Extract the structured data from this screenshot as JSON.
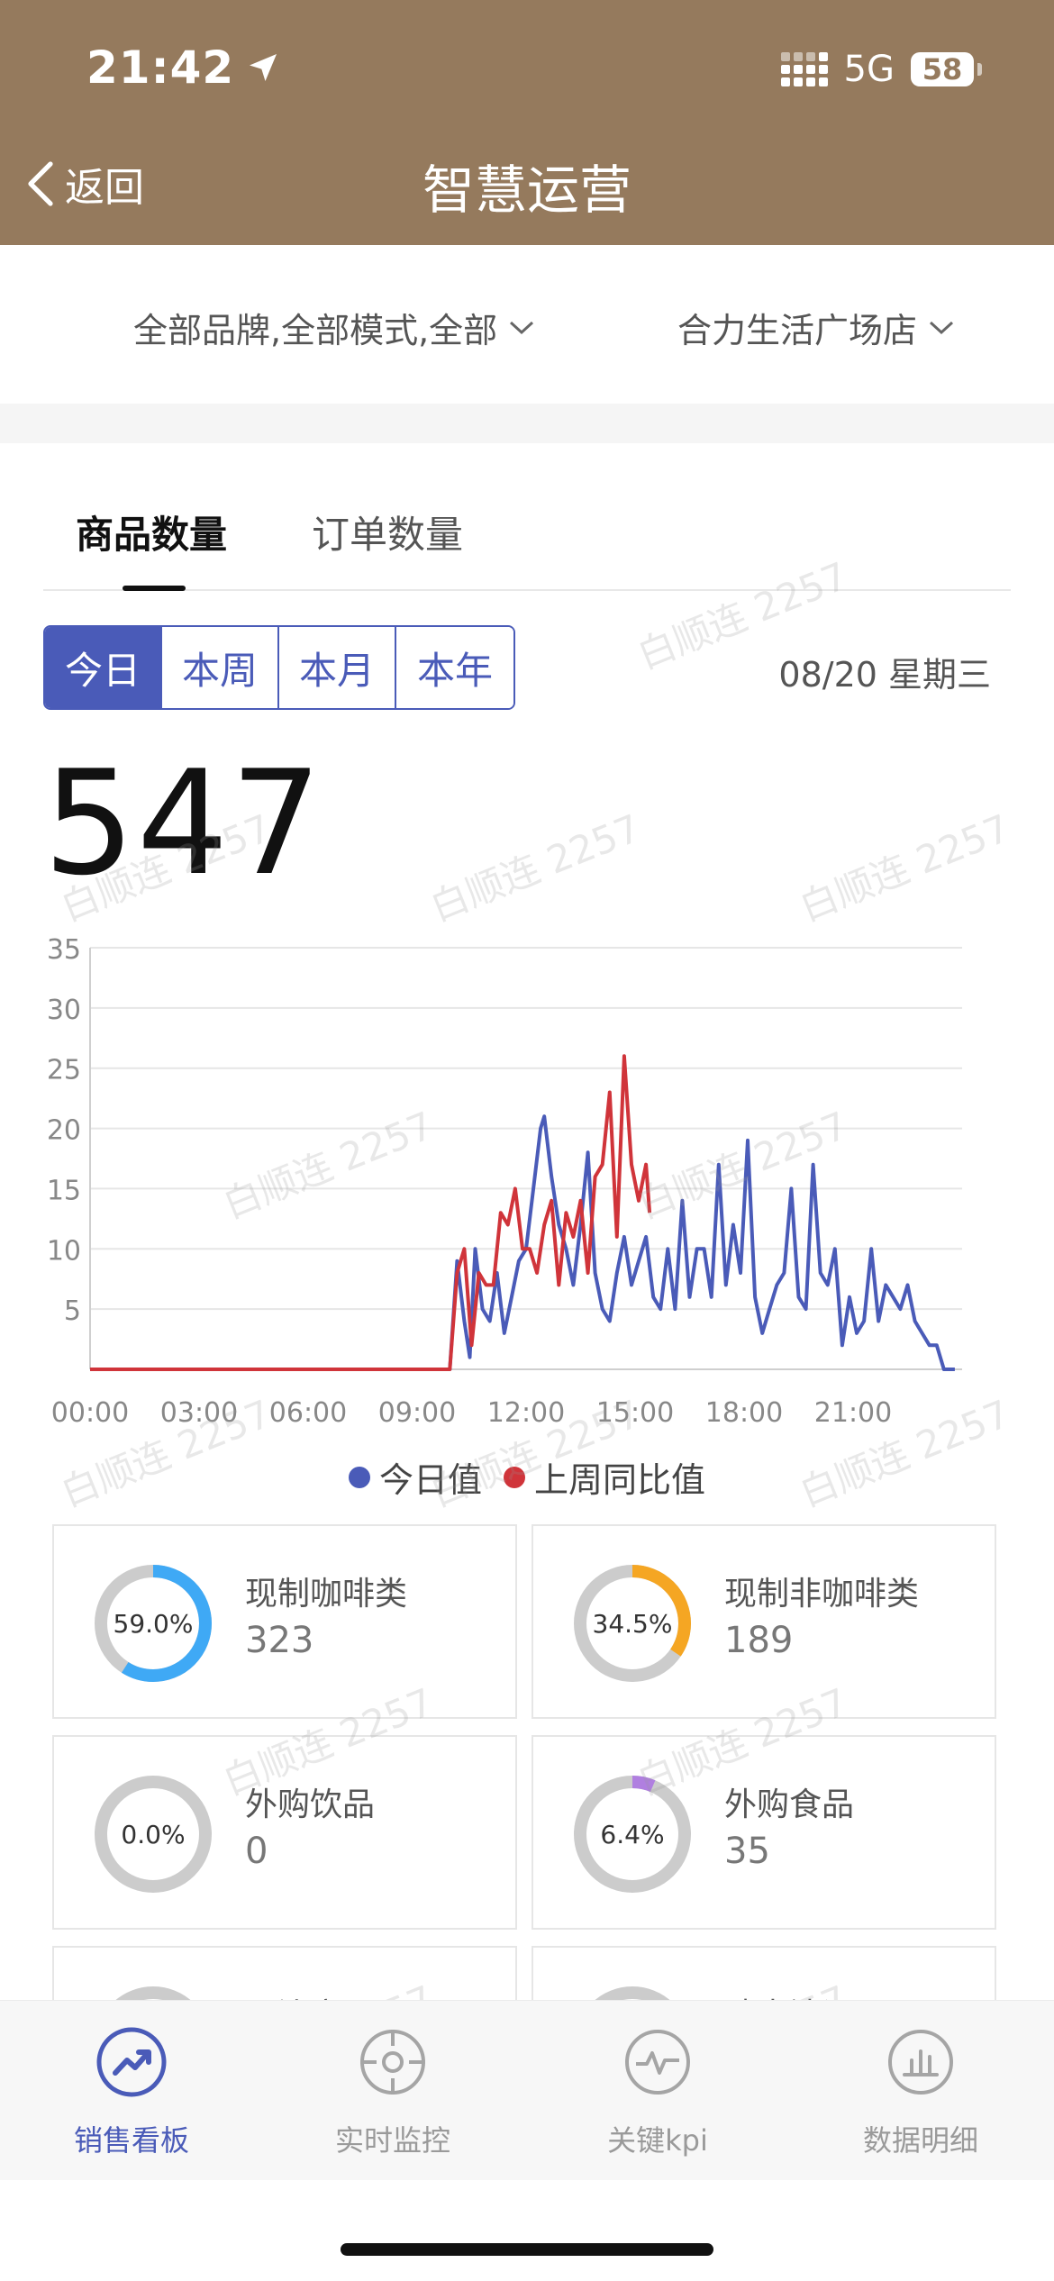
{
  "status_bar": {
    "time": "21:42",
    "network": "5G",
    "battery": "58"
  },
  "nav": {
    "back_label": "返回",
    "title": "智慧运营"
  },
  "filters": {
    "brand_filter": "全部品牌,全部模式,全部",
    "store_filter": "合力生活广场店"
  },
  "tabs": [
    {
      "label": "商品数量",
      "active": true
    },
    {
      "label": "订单数量",
      "active": false
    }
  ],
  "period_segment": [
    {
      "label": "今日",
      "active": true
    },
    {
      "label": "本周"
    },
    {
      "label": "本月"
    },
    {
      "label": "本年"
    }
  ],
  "date_label": "08/20 星期三",
  "total_count": "547",
  "chart_data": {
    "type": "line",
    "y_ticks": [
      "5",
      "10",
      "15",
      "20",
      "25",
      "30",
      "35"
    ],
    "x_ticks": [
      "00:00",
      "03:00",
      "06:00",
      "09:00",
      "12:00",
      "15:00",
      "18:00",
      "21:00"
    ],
    "ylim": [
      0,
      35
    ],
    "xlim": [
      0,
      24
    ],
    "legend_position": "bottom",
    "series": [
      {
        "name": "今日值",
        "color": "#4a5bb8",
        "points": [
          [
            0,
            0
          ],
          [
            9.9,
            0
          ],
          [
            10.1,
            9
          ],
          [
            10.3,
            4
          ],
          [
            10.45,
            1
          ],
          [
            10.6,
            10
          ],
          [
            10.8,
            5
          ],
          [
            11.0,
            4
          ],
          [
            11.2,
            8
          ],
          [
            11.4,
            3
          ],
          [
            11.6,
            6
          ],
          [
            11.8,
            9
          ],
          [
            12.0,
            10
          ],
          [
            12.2,
            15
          ],
          [
            12.4,
            20
          ],
          [
            12.5,
            21
          ],
          [
            12.7,
            16
          ],
          [
            12.9,
            12
          ],
          [
            13.1,
            10
          ],
          [
            13.3,
            7
          ],
          [
            13.5,
            12
          ],
          [
            13.7,
            18
          ],
          [
            13.9,
            8
          ],
          [
            14.1,
            5
          ],
          [
            14.3,
            4
          ],
          [
            14.5,
            8
          ],
          [
            14.7,
            11
          ],
          [
            14.9,
            7
          ],
          [
            15.1,
            9
          ],
          [
            15.3,
            11
          ],
          [
            15.5,
            6
          ],
          [
            15.7,
            5
          ],
          [
            15.9,
            10
          ],
          [
            16.1,
            5
          ],
          [
            16.3,
            14
          ],
          [
            16.5,
            6
          ],
          [
            16.7,
            10
          ],
          [
            16.9,
            10
          ],
          [
            17.1,
            6
          ],
          [
            17.3,
            17
          ],
          [
            17.5,
            7
          ],
          [
            17.7,
            12
          ],
          [
            17.9,
            8
          ],
          [
            18.1,
            19
          ],
          [
            18.3,
            6
          ],
          [
            18.5,
            3
          ],
          [
            18.7,
            5
          ],
          [
            18.9,
            7
          ],
          [
            19.1,
            8
          ],
          [
            19.3,
            15
          ],
          [
            19.5,
            6
          ],
          [
            19.7,
            5
          ],
          [
            19.9,
            17
          ],
          [
            20.1,
            8
          ],
          [
            20.3,
            7
          ],
          [
            20.5,
            10
          ],
          [
            20.7,
            2
          ],
          [
            20.9,
            6
          ],
          [
            21.1,
            3
          ],
          [
            21.3,
            4
          ],
          [
            21.5,
            10
          ],
          [
            21.7,
            4
          ],
          [
            21.9,
            7
          ],
          [
            22.1,
            6
          ],
          [
            22.3,
            5
          ],
          [
            22.5,
            7
          ],
          [
            22.7,
            4
          ],
          [
            22.9,
            3
          ],
          [
            23.1,
            2
          ],
          [
            23.3,
            2
          ],
          [
            23.5,
            0
          ],
          [
            23.8,
            0
          ]
        ]
      },
      {
        "name": "上周同比值",
        "color": "#d0343a",
        "points": [
          [
            0,
            0
          ],
          [
            9.9,
            0
          ],
          [
            10.1,
            8
          ],
          [
            10.3,
            10
          ],
          [
            10.5,
            2
          ],
          [
            10.7,
            8
          ],
          [
            10.9,
            7
          ],
          [
            11.1,
            7
          ],
          [
            11.3,
            13
          ],
          [
            11.5,
            12
          ],
          [
            11.7,
            15
          ],
          [
            11.9,
            10
          ],
          [
            12.1,
            10
          ],
          [
            12.3,
            8
          ],
          [
            12.5,
            12
          ],
          [
            12.7,
            14
          ],
          [
            12.9,
            7
          ],
          [
            13.1,
            13
          ],
          [
            13.3,
            11
          ],
          [
            13.5,
            14
          ],
          [
            13.7,
            8
          ],
          [
            13.9,
            16
          ],
          [
            14.1,
            17
          ],
          [
            14.3,
            23
          ],
          [
            14.5,
            11
          ],
          [
            14.7,
            26
          ],
          [
            14.9,
            17
          ],
          [
            15.1,
            14
          ],
          [
            15.3,
            17
          ],
          [
            15.4,
            13
          ]
        ]
      }
    ]
  },
  "category_cards": [
    {
      "title": "现制咖啡类",
      "value": "323",
      "percent_label": "59.0%",
      "fraction": 0.59,
      "color": "#3fa9f5"
    },
    {
      "title": "现制非咖啡类",
      "value": "189",
      "percent_label": "34.5%",
      "fraction": 0.345,
      "color": "#f5a623"
    },
    {
      "title": "外购饮品",
      "value": "0",
      "percent_label": "0.0%",
      "fraction": 0.0,
      "color": "#b07fe0"
    },
    {
      "title": "外购食品",
      "value": "35",
      "percent_label": "6.4%",
      "fraction": 0.064,
      "color": "#b07fe0"
    },
    {
      "title": "周边商品",
      "value": "",
      "percent_label": "",
      "fraction": 0.0,
      "color": "#cccccc"
    },
    {
      "title": "瑞幸法调",
      "value": "",
      "percent_label": "",
      "fraction": 0.0,
      "color": "#cccccc"
    }
  ],
  "watermark_text": "白顺连 2257",
  "bottom_nav": [
    {
      "label": "销售看板",
      "icon": "trend-chart-icon",
      "active": true
    },
    {
      "label": "实时监控",
      "icon": "target-icon",
      "active": false
    },
    {
      "label": "关键kpi",
      "icon": "pulse-icon",
      "active": false
    },
    {
      "label": "数据明细",
      "icon": "bar-chart-icon",
      "active": false
    }
  ]
}
